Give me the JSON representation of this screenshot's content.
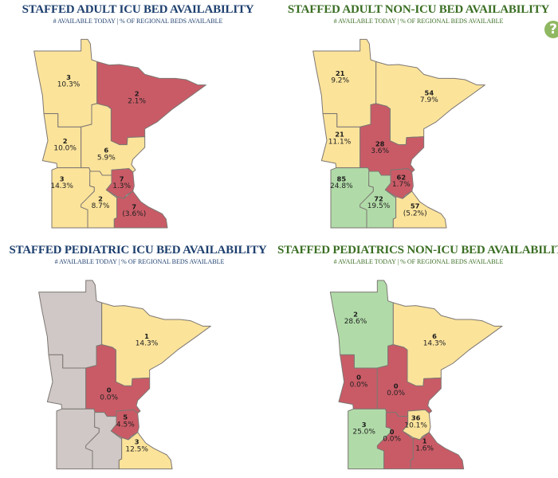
{
  "help_button": {
    "label": "?",
    "color": "#8fb862"
  },
  "status_colors": {
    "good": "#b0dba8",
    "moderate": "#fbe39a",
    "low": "#c95b66",
    "no-data": "#cfc8c6"
  },
  "maps": [
    {
      "title": "STAFFED ADULT ICU BED AVAILABILITY",
      "subtitle": "# AVAILABLE TODAY | % OF REGIONAL BEDS AVAILABLE",
      "title_color": "#1d3f6e",
      "regions": [
        {
          "count": "3",
          "percent": "10.3%",
          "status": "moderate"
        },
        {
          "count": "2",
          "percent": "2.1%",
          "status": "low"
        },
        {
          "count": "2",
          "percent": "10.0%",
          "status": "moderate"
        },
        {
          "count": "6",
          "percent": "5.9%",
          "status": "moderate"
        },
        {
          "count": "3",
          "percent": "14.3%",
          "status": "moderate"
        },
        {
          "count": "2",
          "percent": "8.7%",
          "status": "moderate"
        },
        {
          "count": "7",
          "percent": "1.3%",
          "status": "low"
        },
        {
          "count": "7",
          "percent": "(3.6%)",
          "status": "low"
        }
      ]
    },
    {
      "title": "STAFFED ADULT NON-ICU BED AVAILABILITY",
      "subtitle": "# AVAILABLE TODAY | % OF REGIONAL BEDS AVAILABLE",
      "title_color": "#3a6e23",
      "regions": [
        {
          "count": "21",
          "percent": "9.2%",
          "status": "moderate"
        },
        {
          "count": "54",
          "percent": "7.9%",
          "status": "moderate"
        },
        {
          "count": "21",
          "percent": "11.1%",
          "status": "moderate"
        },
        {
          "count": "28",
          "percent": "3.6%",
          "status": "low"
        },
        {
          "count": "85",
          "percent": "24.8%",
          "status": "good"
        },
        {
          "count": "72",
          "percent": "19.5%",
          "status": "good"
        },
        {
          "count": "62",
          "percent": "1.7%",
          "status": "low"
        },
        {
          "count": "57",
          "percent": "(5.2%)",
          "status": "moderate"
        }
      ]
    },
    {
      "title": "STAFFED PEDIATRIC ICU BED AVAILABILITY",
      "subtitle": "# AVAILABLE TODAY | % OF REGIONAL BEDS AVAILABLE",
      "title_color": "#1d3f6e",
      "regions": [
        {
          "status": "no-data"
        },
        {
          "count": "1",
          "percent": "14.3%",
          "status": "moderate"
        },
        {
          "status": "no-data"
        },
        {
          "count": "0",
          "percent": "0.0%",
          "status": "low"
        },
        {
          "status": "no-data"
        },
        {
          "status": "no-data"
        },
        {
          "count": "5",
          "percent": "4.5%",
          "status": "low"
        },
        {
          "count": "3",
          "percent": "12.5%",
          "status": "moderate"
        }
      ]
    },
    {
      "title": "STAFFED PEDIATRICS NON-ICU BED AVAILABILITY",
      "subtitle": "# AVAILABLE TODAY | % OF REGIONAL BEDS AVAILABLE",
      "title_color": "#3a6e23",
      "regions": [
        {
          "count": "2",
          "percent": "28.6%",
          "status": "good"
        },
        {
          "count": "6",
          "percent": "14.3%",
          "status": "moderate"
        },
        {
          "count": "0",
          "percent": "0.0%",
          "status": "low"
        },
        {
          "count": "0",
          "percent": "0.0%",
          "status": "low"
        },
        {
          "count": "3",
          "percent": "25.0%",
          "status": "good"
        },
        {
          "count": "0",
          "percent": "0.0%",
          "status": "low"
        },
        {
          "count": "36",
          "percent": "10.1%",
          "status": "moderate"
        },
        {
          "count": "1",
          "percent": "1.6%",
          "status": "low"
        }
      ]
    }
  ]
}
